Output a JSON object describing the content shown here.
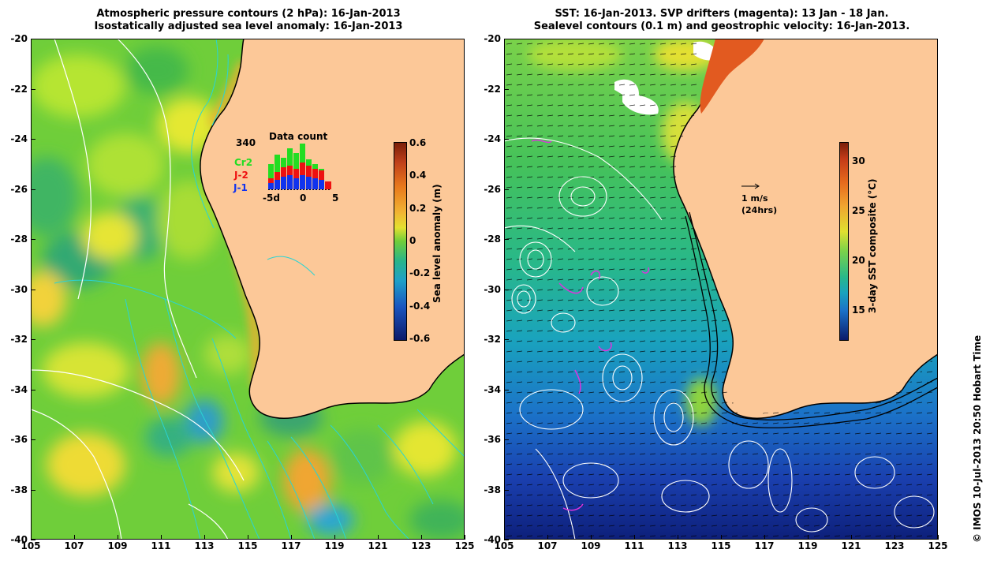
{
  "left_title": {
    "line1": "Atmospheric pressure contours (2 hPa): 16-Jan-2013",
    "line2": "Isostatically adjusted sea level anomaly: 16-Jan-2013"
  },
  "right_title": {
    "line1": "SST: 16-Jan-2013. SVP drifters (magenta): 13 Jan - 18 Jan.",
    "line2": "Sealevel contours (0.1 m) and geostrophic velocity: 16-Jan-2013."
  },
  "lat_ticks": [
    "-20",
    "-22",
    "-24",
    "-26",
    "-28",
    "-30",
    "-32",
    "-34",
    "-36",
    "-38",
    "-40"
  ],
  "lon_ticks": [
    "105",
    "107",
    "109",
    "111",
    "113",
    "115",
    "117",
    "119",
    "121",
    "123",
    "125"
  ],
  "map_extent": {
    "lon": [
      105,
      125
    ],
    "lat": [
      -40,
      -20
    ]
  },
  "sla_colorbar": {
    "title": "Sea level anomaly (m)",
    "labels": [
      "0.6",
      "0.4",
      "0.2",
      "0",
      "-0.2",
      "-0.4",
      "-0.6"
    ],
    "range": [
      -0.6,
      0.6
    ]
  },
  "sst_colorbar": {
    "title": "3-day SST composite (°C)",
    "labels": [
      "30",
      "25",
      "20",
      "15"
    ],
    "range": [
      12,
      32
    ]
  },
  "data_count_inset": {
    "title": "Data count",
    "max_label": "340",
    "x_labels": [
      "-5d",
      "0",
      "5"
    ],
    "legend": [
      {
        "label": "Cr2",
        "color": "#22dd22"
      },
      {
        "label": "J-2",
        "color": "#ee1111"
      },
      {
        "label": "J-1",
        "color": "#1133ee"
      }
    ]
  },
  "velocity_scale": {
    "line1": "1 m/s",
    "line2": "(24hrs)"
  },
  "credit": "© IMOS 10-Jul-2013 20:50 Hobart Time",
  "colors": {
    "land": "#fcc898",
    "coast": "#000000",
    "pressure_contour": "#ffffff",
    "isobath": "#2ad4d4",
    "drifter": "#dd33dd"
  }
}
